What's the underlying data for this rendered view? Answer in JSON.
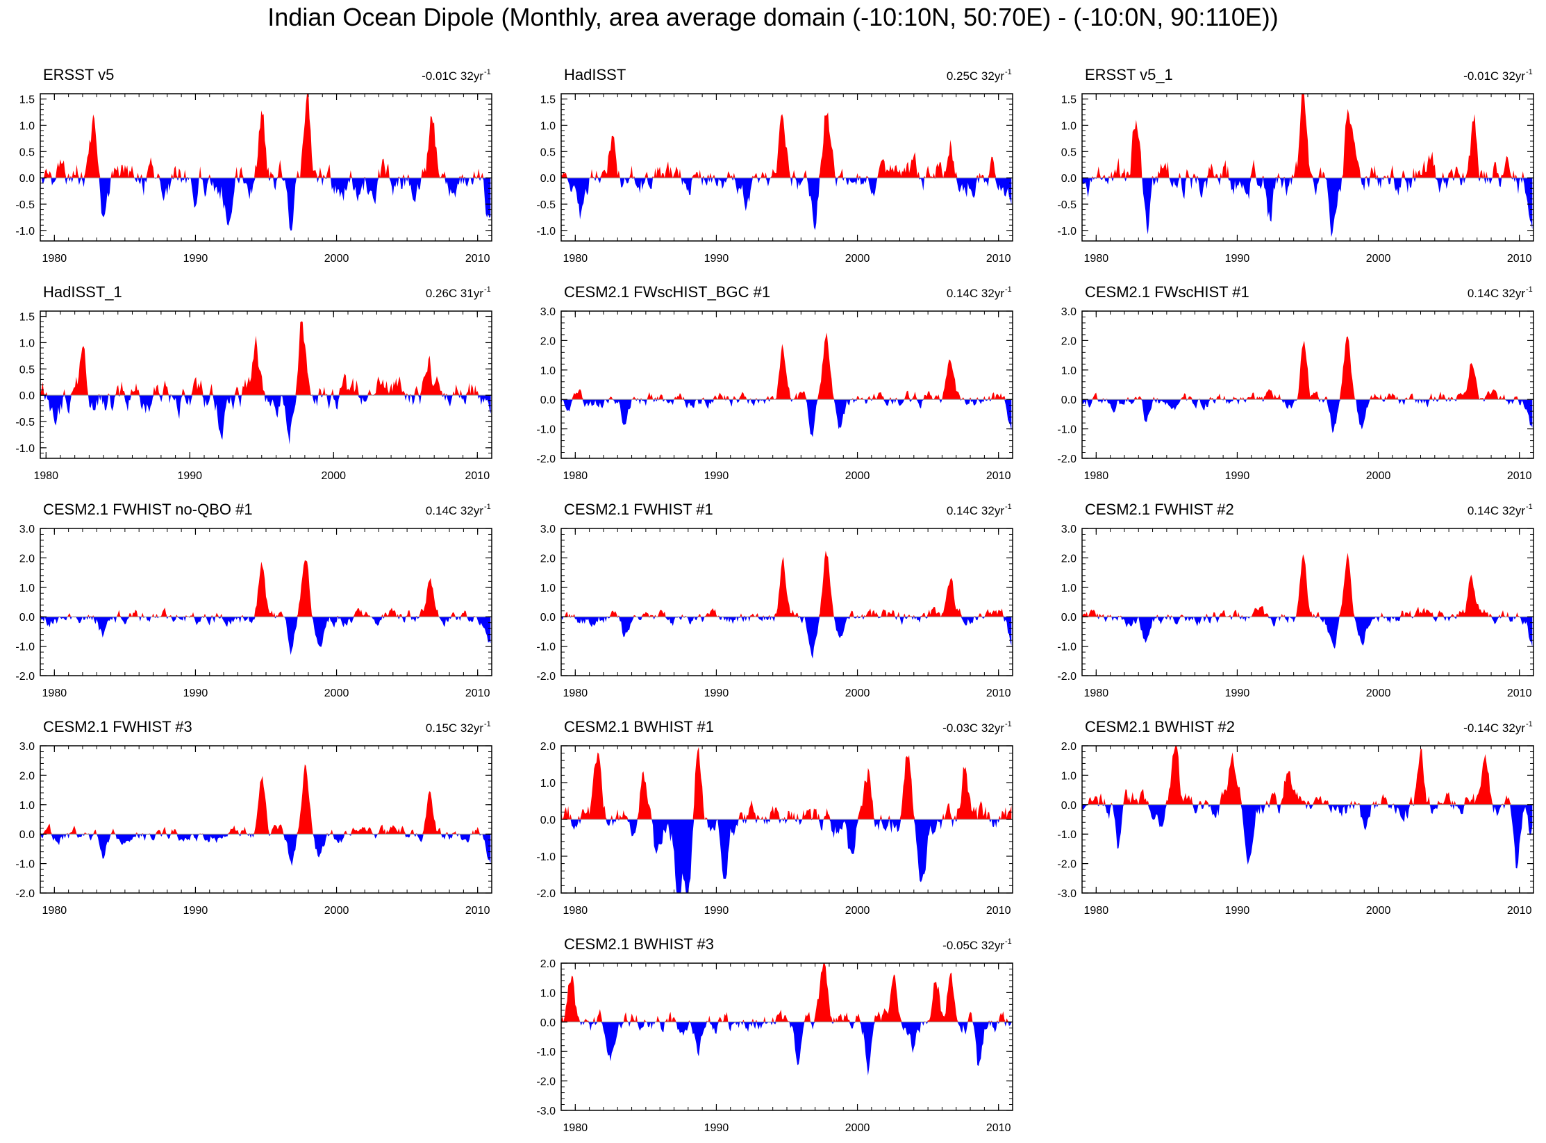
{
  "title": "Indian Ocean Dipole (Monthly, area average domain (-10:10N, 50:70E) - (-10:0N, 90:110E))",
  "colors": {
    "positive": "#ff0000",
    "negative": "#0000ff",
    "axis": "#000000",
    "reference": "#999999"
  },
  "chart_data": [
    {
      "type": "area",
      "title": "ERSST v5",
      "trend_label": "-0.01C 32yr",
      "trend_units_sup": "-1",
      "xlim": [
        1979,
        2011
      ],
      "ylim": [
        -1.2,
        1.6
      ],
      "yticks": [
        "1.5",
        "1.0",
        "0.5",
        "0.0",
        "-0.5",
        "-1.0"
      ],
      "xticks": [
        "1980",
        "1990",
        "2000",
        "2010"
      ],
      "seed": 1,
      "amp": 0.45,
      "events": [
        [
          1982.8,
          0.9
        ],
        [
          1994.7,
          1.4
        ],
        [
          1997.9,
          1.5
        ],
        [
          1983.6,
          -0.85
        ],
        [
          1992.3,
          -0.75
        ],
        [
          1996.8,
          -0.95
        ],
        [
          2006.8,
          1.0
        ],
        [
          2010.9,
          -0.95
        ],
        [
          1989.9,
          -0.5
        ]
      ]
    },
    {
      "type": "area",
      "title": "HadISST",
      "trend_label": "0.25C 32yr",
      "trend_units_sup": "-1",
      "xlim": [
        1979,
        2011
      ],
      "ylim": [
        -1.2,
        1.6
      ],
      "yticks": [
        "1.5",
        "1.0",
        "0.5",
        "0.0",
        "-0.5",
        "-1.0"
      ],
      "xticks": [
        "1980",
        "1990",
        "2000",
        "2010"
      ],
      "seed": 2,
      "amp": 0.4,
      "trend": 0.25,
      "events": [
        [
          1982.6,
          0.75
        ],
        [
          1994.6,
          0.9
        ],
        [
          1997.8,
          1.4
        ],
        [
          1992.2,
          -0.6
        ],
        [
          1996.9,
          -0.85
        ],
        [
          2006.6,
          0.7
        ],
        [
          2010.9,
          -0.35
        ],
        [
          1980.5,
          -0.6
        ]
      ]
    },
    {
      "type": "area",
      "title": "ERSST v5_1",
      "trend_label": "-0.01C 32yr",
      "trend_units_sup": "-1",
      "xlim": [
        1979,
        2011
      ],
      "ylim": [
        -1.2,
        1.6
      ],
      "yticks": [
        "1.5",
        "1.0",
        "0.5",
        "0.0",
        "-0.5",
        "-1.0"
      ],
      "xticks": [
        "1980",
        "1990",
        "2000",
        "2010"
      ],
      "seed": 3,
      "amp": 0.45,
      "events": [
        [
          1982.8,
          0.9
        ],
        [
          1994.7,
          1.45
        ],
        [
          1997.9,
          1.55
        ],
        [
          1983.6,
          -0.85
        ],
        [
          1992.3,
          -0.75
        ],
        [
          1996.8,
          -0.9
        ],
        [
          2006.8,
          1.0
        ],
        [
          2010.9,
          -0.95
        ]
      ]
    },
    {
      "type": "area",
      "title": "HadISST_1",
      "trend_label": "0.26C 31yr",
      "trend_units_sup": "-1",
      "xlim": [
        1979.6,
        2011
      ],
      "ylim": [
        -1.2,
        1.6
      ],
      "yticks": [
        "1.5",
        "1.0",
        "0.5",
        "0.0",
        "-0.5",
        "-1.0"
      ],
      "xticks": [
        "1980",
        "1990",
        "2000",
        "2010"
      ],
      "seed": 4,
      "amp": 0.4,
      "trend": 0.26,
      "events": [
        [
          1982.6,
          0.8
        ],
        [
          1994.6,
          0.95
        ],
        [
          1997.8,
          1.45
        ],
        [
          1992.2,
          -0.65
        ],
        [
          1996.9,
          -0.85
        ],
        [
          2006.6,
          0.7
        ],
        [
          2010.9,
          -0.35
        ],
        [
          1980.7,
          -0.6
        ]
      ]
    },
    {
      "type": "area",
      "title": "CESM2.1 FWscHIST_BGC #1",
      "trend_label": "0.14C 32yr",
      "trend_units_sup": "-1",
      "xlim": [
        1979,
        2011
      ],
      "ylim": [
        -2.0,
        3.0
      ],
      "yticks": [
        "3.0",
        "2.0",
        "1.0",
        "0.0",
        "-1.0",
        "-2.0"
      ],
      "xticks": [
        "1980",
        "1990",
        "2000",
        "2010"
      ],
      "seed": 5,
      "amp": 0.35,
      "trend": 0.14,
      "events": [
        [
          1994.7,
          1.9
        ],
        [
          1997.8,
          2.1
        ],
        [
          1996.8,
          -1.1
        ],
        [
          2006.6,
          1.3
        ],
        [
          2010.9,
          -1.0
        ],
        [
          1998.8,
          -0.9
        ],
        [
          1983.5,
          -0.7
        ]
      ]
    },
    {
      "type": "area",
      "title": "CESM2.1 FWscHIST #1",
      "trend_label": "0.14C 32yr",
      "trend_units_sup": "-1",
      "xlim": [
        1979,
        2011
      ],
      "ylim": [
        -2.0,
        3.0
      ],
      "yticks": [
        "3.0",
        "2.0",
        "1.0",
        "0.0",
        "-1.0",
        "-2.0"
      ],
      "xticks": [
        "1980",
        "1990",
        "2000",
        "2010"
      ],
      "seed": 6,
      "amp": 0.35,
      "trend": 0.14,
      "events": [
        [
          1994.7,
          1.9
        ],
        [
          1997.8,
          2.15
        ],
        [
          1996.8,
          -1.1
        ],
        [
          2006.6,
          1.35
        ],
        [
          2010.9,
          -1.0
        ],
        [
          1998.8,
          -0.9
        ],
        [
          1983.5,
          -0.7
        ]
      ]
    },
    {
      "type": "area",
      "title": "CESM2.1 FWHIST no-QBO #1",
      "trend_label": "0.14C 32yr",
      "trend_units_sup": "-1",
      "xlim": [
        1979,
        2011
      ],
      "ylim": [
        -2.0,
        3.0
      ],
      "yticks": [
        "3.0",
        "2.0",
        "1.0",
        "0.0",
        "-1.0",
        "-2.0"
      ],
      "xticks": [
        "1980",
        "1990",
        "2000",
        "2010"
      ],
      "seed": 7,
      "amp": 0.35,
      "trend": 0.14,
      "events": [
        [
          1994.7,
          1.9
        ],
        [
          1997.8,
          2.1
        ],
        [
          1996.8,
          -1.15
        ],
        [
          2006.6,
          1.35
        ],
        [
          2010.9,
          -1.0
        ],
        [
          1998.8,
          -0.9
        ],
        [
          1983.5,
          -0.7
        ]
      ]
    },
    {
      "type": "area",
      "title": "CESM2.1 FWHIST #1",
      "trend_label": "0.14C 32yr",
      "trend_units_sup": "-1",
      "xlim": [
        1979,
        2011
      ],
      "ylim": [
        -2.0,
        3.0
      ],
      "yticks": [
        "3.0",
        "2.0",
        "1.0",
        "0.0",
        "-1.0",
        "-2.0"
      ],
      "xticks": [
        "1980",
        "1990",
        "2000",
        "2010"
      ],
      "seed": 8,
      "amp": 0.35,
      "trend": 0.14,
      "events": [
        [
          1994.7,
          1.9
        ],
        [
          1997.8,
          2.1
        ],
        [
          1996.8,
          -1.1
        ],
        [
          2006.6,
          1.3
        ],
        [
          2010.9,
          -1.0
        ],
        [
          1998.8,
          -0.9
        ],
        [
          1983.5,
          -0.7
        ]
      ]
    },
    {
      "type": "area",
      "title": "CESM2.1 FWHIST #2",
      "trend_label": "0.14C 32yr",
      "trend_units_sup": "-1",
      "xlim": [
        1979,
        2011
      ],
      "ylim": [
        -2.0,
        3.0
      ],
      "yticks": [
        "3.0",
        "2.0",
        "1.0",
        "0.0",
        "-1.0",
        "-2.0"
      ],
      "xticks": [
        "1980",
        "1990",
        "2000",
        "2010"
      ],
      "seed": 9,
      "amp": 0.35,
      "trend": 0.14,
      "events": [
        [
          1994.7,
          1.9
        ],
        [
          1997.8,
          2.15
        ],
        [
          1996.8,
          -1.1
        ],
        [
          2006.6,
          1.35
        ],
        [
          2010.9,
          -1.0
        ],
        [
          1998.8,
          -0.9
        ],
        [
          1983.5,
          -0.7
        ]
      ]
    },
    {
      "type": "area",
      "title": "CESM2.1 FWHIST #3",
      "trend_label": "0.15C 32yr",
      "trend_units_sup": "-1",
      "xlim": [
        1979,
        2011
      ],
      "ylim": [
        -2.0,
        3.0
      ],
      "yticks": [
        "3.0",
        "2.0",
        "1.0",
        "0.0",
        "-1.0",
        "-2.0"
      ],
      "xticks": [
        "1980",
        "1990",
        "2000",
        "2010"
      ],
      "seed": 10,
      "amp": 0.35,
      "trend": 0.15,
      "events": [
        [
          1994.7,
          1.9
        ],
        [
          1997.8,
          2.15
        ],
        [
          1996.8,
          -1.15
        ],
        [
          2006.6,
          1.35
        ],
        [
          2010.9,
          -1.0
        ],
        [
          1998.8,
          -0.9
        ],
        [
          1983.5,
          -0.7
        ]
      ]
    },
    {
      "type": "area",
      "title": "CESM2.1 BWHIST #1",
      "trend_label": "-0.03C 32yr",
      "trend_units_sup": "-1",
      "xlim": [
        1979,
        2011
      ],
      "ylim": [
        -2.0,
        2.0
      ],
      "yticks": [
        "2.0",
        "1.0",
        "0.0",
        "-1.0",
        "-2.0"
      ],
      "xticks": [
        "1980",
        "1990",
        "2000",
        "2010"
      ],
      "seed": 11,
      "amp": 0.55,
      "events": [
        [
          1981.6,
          1.65
        ],
        [
          1984.8,
          1.5
        ],
        [
          1988.7,
          1.9
        ],
        [
          2003.6,
          1.75
        ],
        [
          2007.6,
          1.7
        ],
        [
          2000.8,
          1.3
        ],
        [
          1987.3,
          -1.9
        ],
        [
          1988.0,
          -2.0
        ],
        [
          1990.6,
          -1.5
        ],
        [
          2004.6,
          -1.6
        ],
        [
          1999.6,
          -1.35
        ],
        [
          1985.8,
          -1.1
        ]
      ]
    },
    {
      "type": "area",
      "title": "CESM2.1 BWHIST #2",
      "trend_label": "-0.14C 32yr",
      "trend_units_sup": "-1",
      "xlim": [
        1979,
        2011
      ],
      "ylim": [
        -3.0,
        2.0
      ],
      "yticks": [
        "2.0",
        "1.0",
        "0.0",
        "-1.0",
        "-2.0",
        "-3.0"
      ],
      "xticks": [
        "1980",
        "1990",
        "2000",
        "2010"
      ],
      "seed": 12,
      "amp": 0.55,
      "trend": -0.14,
      "events": [
        [
          1985.6,
          1.75
        ],
        [
          1989.6,
          1.6
        ],
        [
          2003.0,
          1.55
        ],
        [
          2007.6,
          1.6
        ],
        [
          1993.6,
          1.25
        ],
        [
          1981.6,
          -1.6
        ],
        [
          1990.8,
          -1.95
        ],
        [
          1984.6,
          -1.2
        ],
        [
          2009.8,
          -2.4
        ],
        [
          2010.8,
          -1.3
        ],
        [
          1999.0,
          -0.7
        ]
      ]
    },
    {
      "type": "area",
      "title": "CESM2.1 BWHIST #3",
      "trend_label": "-0.05C 32yr",
      "trend_units_sup": "-1",
      "xlim": [
        1979,
        2011
      ],
      "ylim": [
        -3.0,
        2.0
      ],
      "yticks": [
        "2.0",
        "1.0",
        "0.0",
        "-1.0",
        "-2.0",
        "-3.0"
      ],
      "xticks": [
        "1980",
        "1990",
        "2000",
        "2010"
      ],
      "seed": 13,
      "amp": 0.5,
      "events": [
        [
          1979.7,
          1.5
        ],
        [
          1997.6,
          1.6
        ],
        [
          2005.6,
          1.45
        ],
        [
          2006.6,
          1.45
        ],
        [
          2002.6,
          1.05
        ],
        [
          1982.5,
          -1.25
        ],
        [
          1988.7,
          -1.2
        ],
        [
          1995.8,
          -1.3
        ],
        [
          2000.8,
          -1.5
        ],
        [
          2008.6,
          -1.9
        ],
        [
          2004.0,
          -1.0
        ]
      ]
    }
  ]
}
